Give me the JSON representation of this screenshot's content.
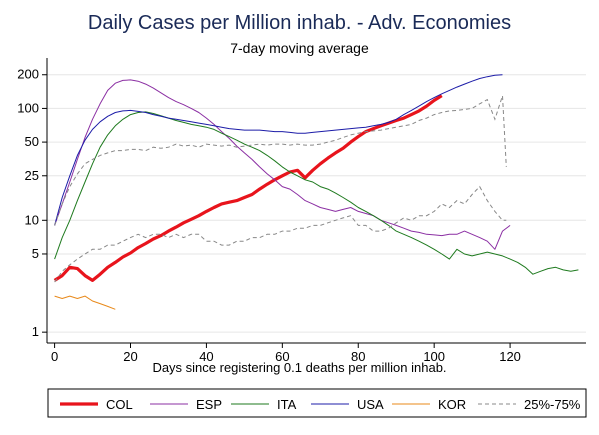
{
  "chart_data": {
    "type": "line",
    "title": "Daily Cases per Million inhab. - Adv. Economies",
    "subtitle": "7-day moving average",
    "xlabel": "Days since registering 0.1 deaths per million inhab.",
    "ylabel": "",
    "y_scale": "log",
    "xlim": [
      -2,
      140
    ],
    "ylim": [
      0.8,
      260
    ],
    "x_ticks": [
      0,
      20,
      40,
      60,
      80,
      100,
      120
    ],
    "y_ticks": [
      1,
      5,
      10,
      25,
      50,
      100,
      200
    ],
    "grid": "horizontal",
    "legend_position": "bottom",
    "series": [
      {
        "name": "COL",
        "color": "#e8141c",
        "x": [
          0,
          2,
          4,
          6,
          8,
          10,
          12,
          14,
          16,
          18,
          20,
          22,
          24,
          26,
          28,
          30,
          32,
          34,
          36,
          38,
          40,
          42,
          44,
          46,
          48,
          50,
          52,
          54,
          56,
          58,
          60,
          62,
          64,
          66,
          68,
          70,
          72,
          74,
          76,
          78,
          80,
          82,
          84,
          86,
          88,
          90,
          92,
          94,
          96,
          98,
          100,
          102
        ],
        "y": [
          2.9,
          3.2,
          3.8,
          3.7,
          3.2,
          2.9,
          3.3,
          3.8,
          4.2,
          4.7,
          5.1,
          5.7,
          6.2,
          6.8,
          7.3,
          8,
          8.7,
          9.5,
          10.2,
          11,
          12,
          13,
          14,
          14.5,
          15,
          16,
          17,
          19,
          21,
          23,
          25,
          27,
          28,
          24,
          28,
          32,
          36,
          40,
          44,
          50,
          56,
          62,
          66,
          70,
          74,
          78,
          82,
          88,
          95,
          105,
          118,
          130
        ]
      },
      {
        "name": "ESP",
        "color": "#8b2fa3",
        "x": [
          0,
          2,
          4,
          6,
          8,
          10,
          12,
          14,
          16,
          18,
          20,
          22,
          24,
          26,
          28,
          30,
          32,
          34,
          36,
          38,
          40,
          42,
          44,
          46,
          48,
          50,
          52,
          54,
          56,
          58,
          60,
          62,
          64,
          66,
          68,
          70,
          72,
          74,
          76,
          78,
          80,
          82,
          84,
          86,
          88,
          90,
          92,
          94,
          96,
          98,
          100,
          102,
          104,
          106,
          108,
          110,
          112,
          114,
          116,
          118,
          120
        ],
        "y": [
          9,
          14,
          22,
          35,
          55,
          80,
          110,
          145,
          168,
          178,
          180,
          175,
          165,
          152,
          138,
          125,
          115,
          108,
          100,
          92,
          82,
          72,
          62,
          54,
          46,
          40,
          35,
          30,
          26,
          23,
          20,
          19,
          17,
          15,
          14,
          13,
          12.5,
          12,
          12.5,
          13,
          12,
          11.5,
          11,
          10,
          9.5,
          9,
          8.5,
          8,
          7.8,
          7.5,
          7.4,
          7.3,
          7.5,
          7.5,
          8,
          7.5,
          7,
          6.5,
          5.5,
          8,
          9
        ]
      },
      {
        "name": "ITA",
        "color": "#1e7a1e",
        "x": [
          0,
          2,
          4,
          6,
          8,
          10,
          12,
          14,
          16,
          18,
          20,
          22,
          24,
          26,
          28,
          30,
          32,
          34,
          36,
          38,
          40,
          42,
          44,
          46,
          48,
          50,
          52,
          54,
          56,
          58,
          60,
          62,
          64,
          66,
          68,
          70,
          72,
          74,
          76,
          78,
          80,
          82,
          84,
          86,
          88,
          90,
          92,
          94,
          96,
          98,
          100,
          102,
          104,
          106,
          108,
          110,
          112,
          114,
          116,
          118,
          120,
          122,
          124,
          126,
          128,
          130,
          132,
          134,
          136,
          138
        ],
        "y": [
          4.5,
          7,
          10,
          15,
          22,
          32,
          45,
          58,
          70,
          80,
          88,
          92,
          93,
          90,
          86,
          82,
          78,
          75,
          72,
          70,
          68,
          65,
          60,
          56,
          52,
          48,
          45,
          42,
          38,
          34,
          30,
          27,
          25,
          23,
          22,
          20,
          19,
          17.5,
          16,
          14.5,
          13,
          12,
          11,
          10,
          9,
          8,
          7.5,
          7,
          6.5,
          6,
          5.5,
          5,
          4.5,
          5.5,
          5,
          4.8,
          5,
          5.2,
          5,
          4.8,
          4.5,
          4.2,
          3.8,
          3.3,
          3.5,
          3.7,
          3.8,
          3.6,
          3.5,
          3.6
        ]
      },
      {
        "name": "USA",
        "color": "#1c1ca8",
        "x": [
          0,
          2,
          4,
          6,
          8,
          10,
          12,
          14,
          16,
          18,
          20,
          22,
          24,
          26,
          28,
          30,
          32,
          34,
          36,
          38,
          40,
          42,
          44,
          46,
          48,
          50,
          52,
          54,
          56,
          58,
          60,
          62,
          64,
          66,
          68,
          70,
          72,
          74,
          76,
          78,
          80,
          82,
          84,
          86,
          88,
          90,
          92,
          94,
          96,
          98,
          100,
          102,
          104,
          106,
          108,
          110,
          112,
          114,
          116,
          118
        ],
        "y": [
          9,
          16,
          25,
          38,
          52,
          65,
          76,
          85,
          92,
          95,
          96,
          94,
          92,
          88,
          85,
          82,
          80,
          78,
          76,
          74,
          72,
          70,
          68,
          66,
          65,
          64,
          64,
          64,
          63,
          62,
          62,
          61,
          60,
          60,
          61,
          62,
          63,
          64,
          65,
          66,
          67,
          68,
          70,
          72,
          75,
          80,
          88,
          96,
          105,
          115,
          125,
          135,
          145,
          155,
          165,
          175,
          185,
          192,
          198,
          200
        ]
      },
      {
        "name": "KOR",
        "color": "#e8891a",
        "x": [
          0,
          2,
          4,
          6,
          8,
          10,
          12,
          14,
          16
        ],
        "y": [
          2.1,
          2.0,
          2.1,
          2.0,
          2.1,
          1.9,
          1.8,
          1.7,
          1.6
        ]
      },
      {
        "name": "25%-75%",
        "color": "#888888",
        "dashed": true,
        "x": [
          0,
          2,
          4,
          6,
          8,
          10,
          12,
          14,
          16,
          18,
          20,
          22,
          24,
          26,
          28,
          30,
          32,
          34,
          36,
          38,
          40,
          42,
          44,
          46,
          48,
          50,
          52,
          54,
          56,
          58,
          60,
          62,
          64,
          66,
          68,
          70,
          72,
          74,
          76,
          78,
          80,
          82,
          84,
          86,
          88,
          90,
          92,
          94,
          96,
          98,
          100,
          102,
          104,
          106,
          108,
          110,
          112,
          114,
          116,
          118,
          119
        ],
        "y": [
          [
            2.8,
            9
          ],
          [
            3.5,
            14
          ],
          [
            4,
            20
          ],
          [
            4.5,
            26
          ],
          [
            5,
            32
          ],
          [
            5.5,
            35
          ],
          [
            5.5,
            38
          ],
          [
            6,
            40
          ],
          [
            6,
            42
          ],
          [
            6.5,
            42
          ],
          [
            7,
            43
          ],
          [
            7.5,
            43
          ],
          [
            7,
            42
          ],
          [
            7.5,
            45
          ],
          [
            7.5,
            44
          ],
          [
            7,
            45
          ],
          [
            7.5,
            48
          ],
          [
            7,
            46
          ],
          [
            7.5,
            47
          ],
          [
            7.5,
            45
          ],
          [
            6.5,
            48
          ],
          [
            6.5,
            47
          ],
          [
            6,
            46
          ],
          [
            6,
            47
          ],
          [
            6.5,
            45
          ],
          [
            6.5,
            46
          ],
          [
            7,
            47
          ],
          [
            7,
            48
          ],
          [
            7.5,
            47
          ],
          [
            7.5,
            48
          ],
          [
            8,
            48
          ],
          [
            8,
            47
          ],
          [
            8.5,
            48
          ],
          [
            8.5,
            47
          ],
          [
            9,
            47
          ],
          [
            9,
            48
          ],
          [
            9.5,
            50
          ],
          [
            10,
            52
          ],
          [
            10.5,
            55
          ],
          [
            11,
            58
          ],
          [
            9,
            60
          ],
          [
            9,
            62
          ],
          [
            8,
            63
          ],
          [
            8,
            64
          ],
          [
            8.5,
            66
          ],
          [
            9.5,
            68
          ],
          [
            10.5,
            70
          ],
          [
            10,
            72
          ],
          [
            11,
            78
          ],
          [
            11,
            82
          ],
          [
            12,
            88
          ],
          [
            14,
            92
          ],
          [
            13,
            95
          ],
          [
            15,
            96
          ],
          [
            14,
            98
          ],
          [
            17,
            100
          ],
          [
            20,
            110
          ],
          [
            15,
            120
          ],
          [
            12,
            80
          ],
          [
            10,
            130
          ],
          [
            10,
            30
          ]
        ]
      }
    ]
  }
}
